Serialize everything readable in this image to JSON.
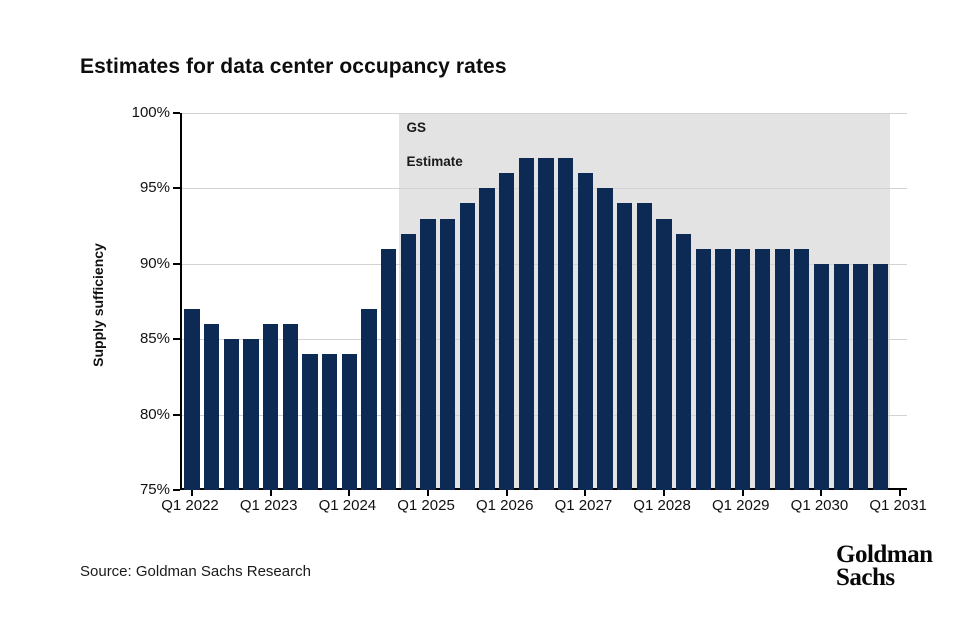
{
  "header": {
    "title": "Estimates for data center occupancy rates"
  },
  "chart_data": {
    "type": "bar",
    "title": "Estimates for data center occupancy rates",
    "xlabel": "",
    "ylabel": "Supply sufficiency",
    "ylim": [
      75,
      100
    ],
    "grid": true,
    "legend": false,
    "bar_color": "#0d2a54",
    "region_color": "#e3e3e3",
    "yticks": [
      75,
      80,
      85,
      90,
      95,
      100
    ],
    "ytick_labels": [
      "75%",
      "80%",
      "85%",
      "90%",
      "95%",
      "100%"
    ],
    "xtick_labels": [
      "Q1 2022",
      "Q1 2023",
      "Q1 2024",
      "Q1 2025",
      "Q1 2026",
      "Q1 2027",
      "Q1 2028",
      "Q1 2029",
      "Q1 2030",
      "Q1 2031"
    ],
    "categories": [
      "Q1 2022",
      "Q2 2022",
      "Q3 2022",
      "Q4 2022",
      "Q1 2023",
      "Q2 2023",
      "Q3 2023",
      "Q4 2023",
      "Q1 2024",
      "Q2 2024",
      "Q3 2024",
      "Q4 2024",
      "Q1 2025",
      "Q2 2025",
      "Q3 2025",
      "Q4 2025",
      "Q1 2026",
      "Q2 2026",
      "Q3 2026",
      "Q4 2026",
      "Q1 2027",
      "Q2 2027",
      "Q3 2027",
      "Q4 2027",
      "Q1 2028",
      "Q2 2028",
      "Q3 2028",
      "Q4 2028",
      "Q1 2029",
      "Q2 2029",
      "Q3 2029",
      "Q4 2029",
      "Q1 2030",
      "Q2 2030",
      "Q3 2030",
      "Q4 2030"
    ],
    "values": [
      87,
      86,
      85,
      85,
      86,
      86,
      84,
      84,
      84,
      87,
      91,
      92,
      93,
      93,
      94,
      95,
      96,
      97,
      97,
      97,
      96,
      95,
      94,
      94,
      93,
      92,
      91,
      91,
      91,
      91,
      91,
      91,
      90,
      90,
      90,
      90
    ],
    "estimate_region": {
      "label_line1": "GS",
      "label_line2": "Estimate",
      "start_category": "Q4 2024"
    }
  },
  "footer": {
    "source": "Source: Goldman Sachs Research",
    "logo_line1": "Goldman",
    "logo_line2": "Sachs"
  }
}
